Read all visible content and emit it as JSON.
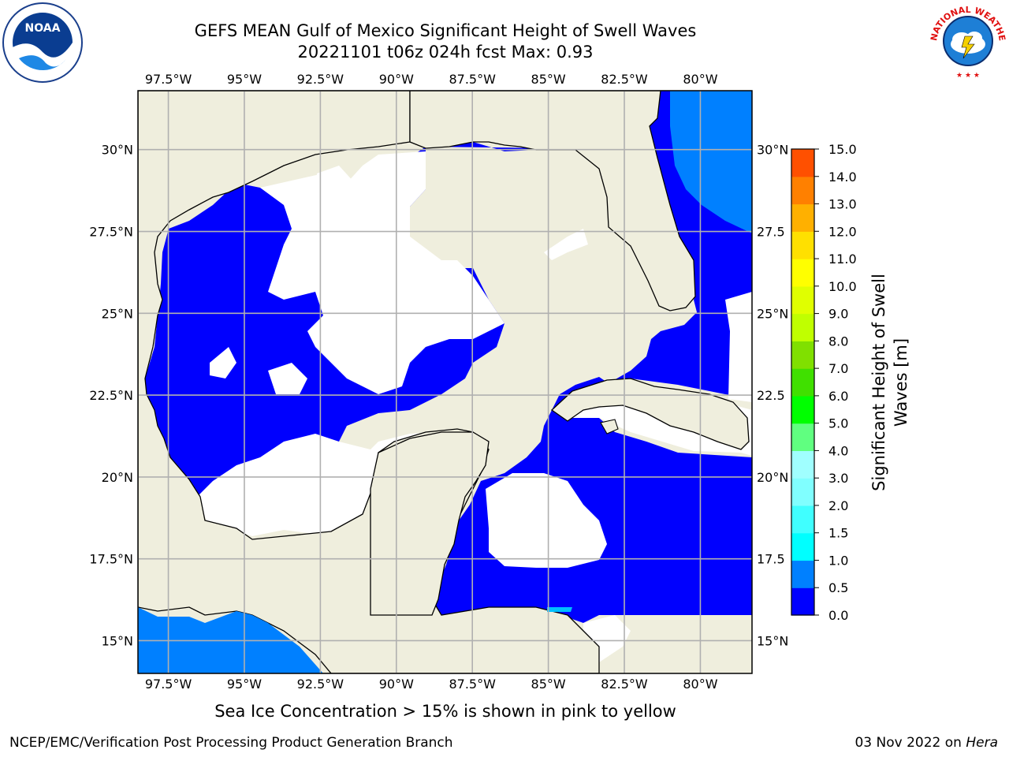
{
  "title": {
    "line1": "GEFS MEAN Gulf of Mexico Significant Height of Swell Waves",
    "line2": "20221101 t06z 024h fcst   Max: 0.93"
  },
  "map": {
    "projection": "PlateCarree",
    "lon_range": [
      -98.5,
      -78.3
    ],
    "lat_range": [
      14,
      31.8
    ],
    "lon_ticks": [
      "97.5°W",
      "95°W",
      "92.5°W",
      "90°W",
      "87.5°W",
      "85°W",
      "82.5°W",
      "80°W"
    ],
    "lon_values": [
      -97.5,
      -95,
      -92.5,
      -90,
      -87.5,
      -85,
      -82.5,
      -80
    ],
    "lat_ticks": [
      "15°N",
      "17.5°N",
      "20°N",
      "22.5°N",
      "25°N",
      "27.5°N",
      "30°N"
    ],
    "lat_values": [
      15,
      17.5,
      20,
      22.5,
      25,
      27.5,
      30
    ],
    "right_lat_ticks": [
      "15°N",
      "17.5",
      "20°N",
      "22.5",
      "25°N",
      "27.5",
      "30°N"
    ],
    "land_color": "#efeedd",
    "ocean_colors": {
      "band_0_0.5": "#0000fe",
      "band_0.5_1.0": "#0080ff",
      "below_threshold": "#ffffff"
    },
    "grid": true
  },
  "colorbar": {
    "label_line1": "Significant Height of Swell",
    "label_line2": "Waves [m]",
    "ticks": [
      "0.0",
      "0.5",
      "1.0",
      "1.5",
      "2.0",
      "3.0",
      "4.0",
      "5.0",
      "6.0",
      "7.0",
      "8.0",
      "9.0",
      "10.0",
      "11.0",
      "12.0",
      "13.0",
      "14.0",
      "15.0"
    ],
    "colors": [
      "#0000ff",
      "#0080ff",
      "#00ffff",
      "#40ffff",
      "#80ffff",
      "#a0ffff",
      "#60ff80",
      "#00ff00",
      "#40e000",
      "#80e000",
      "#c0ff00",
      "#e0ff00",
      "#ffff00",
      "#ffe000",
      "#ffb000",
      "#ff8000",
      "#ff5000",
      "#ff2000",
      "#ff0000"
    ]
  },
  "note": "Sea Ice Concentration > 15% is shown in pink to yellow",
  "footer": {
    "left": "NCEP/EMC/Verification Post Processing Product Generation Branch",
    "date": "03 Nov 2022 on ",
    "host": "Hera"
  },
  "logos": {
    "noaa_text": "NOAA",
    "nws_text": "NATIONAL WEATHER SERVICE"
  }
}
